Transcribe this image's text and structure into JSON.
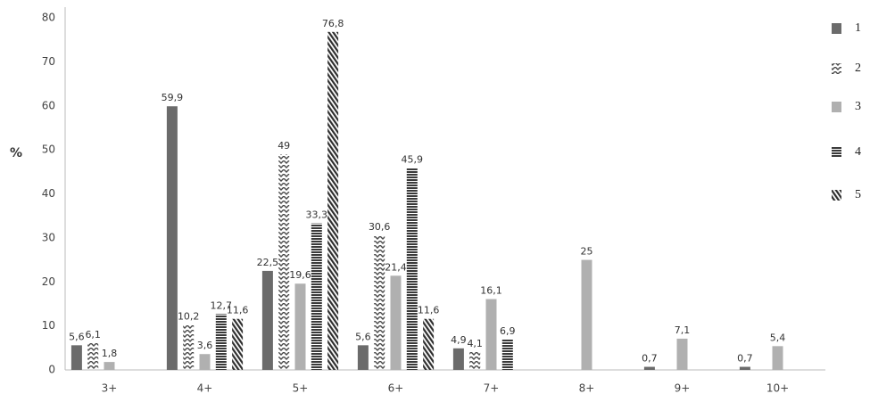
{
  "chart_data": {
    "type": "bar",
    "y_label": "%",
    "categories": [
      "3+",
      "4+",
      "5+",
      "6+",
      "7+",
      "8+",
      "9+",
      "10+"
    ],
    "series": [
      {
        "name": "1",
        "color": "#6b6b6b",
        "pattern": "solid",
        "values": [
          5.6,
          59.9,
          22.5,
          5.6,
          4.9,
          null,
          0.7,
          0.7
        ],
        "value_labels": [
          "5,6",
          "59,9",
          "22,5",
          "5,6",
          "4,9",
          null,
          "0,7",
          "0,7"
        ]
      },
      {
        "name": "2",
        "color": "#4a4a4a",
        "pattern": "zigzag",
        "values": [
          6.1,
          10.2,
          49,
          30.6,
          4.1,
          null,
          null,
          null
        ],
        "value_labels": [
          "6,1",
          "10,2",
          "49",
          "30,6",
          "4,1",
          null,
          null,
          null
        ]
      },
      {
        "name": "3",
        "color": "#b0b0b0",
        "pattern": "solid",
        "values": [
          1.8,
          3.6,
          19.6,
          21.4,
          16.1,
          25,
          7.1,
          5.4
        ],
        "value_labels": [
          "1,8",
          "3,6",
          "19,6",
          "21,4",
          "16,1",
          "25",
          "7,1",
          "5,4"
        ]
      },
      {
        "name": "4",
        "color": "#3a3a3a",
        "pattern": "hstripe",
        "values": [
          null,
          12.7,
          33.3,
          45.9,
          6.9,
          null,
          null,
          null
        ],
        "value_labels": [
          null,
          "12,7",
          "33,3",
          "45,9",
          "6,9",
          null,
          null,
          null
        ]
      },
      {
        "name": "5",
        "color": "#2e2e2e",
        "pattern": "dstripe",
        "values": [
          null,
          11.6,
          76.8,
          11.6,
          null,
          null,
          null,
          null
        ],
        "value_labels": [
          null,
          "11,6",
          "76,8",
          "11,6",
          null,
          null,
          null,
          null
        ]
      }
    ],
    "ylim": [
      0,
      80
    ],
    "yticks": [
      0,
      10,
      20,
      30,
      40,
      50,
      60,
      70,
      80
    ],
    "grid": false
  }
}
